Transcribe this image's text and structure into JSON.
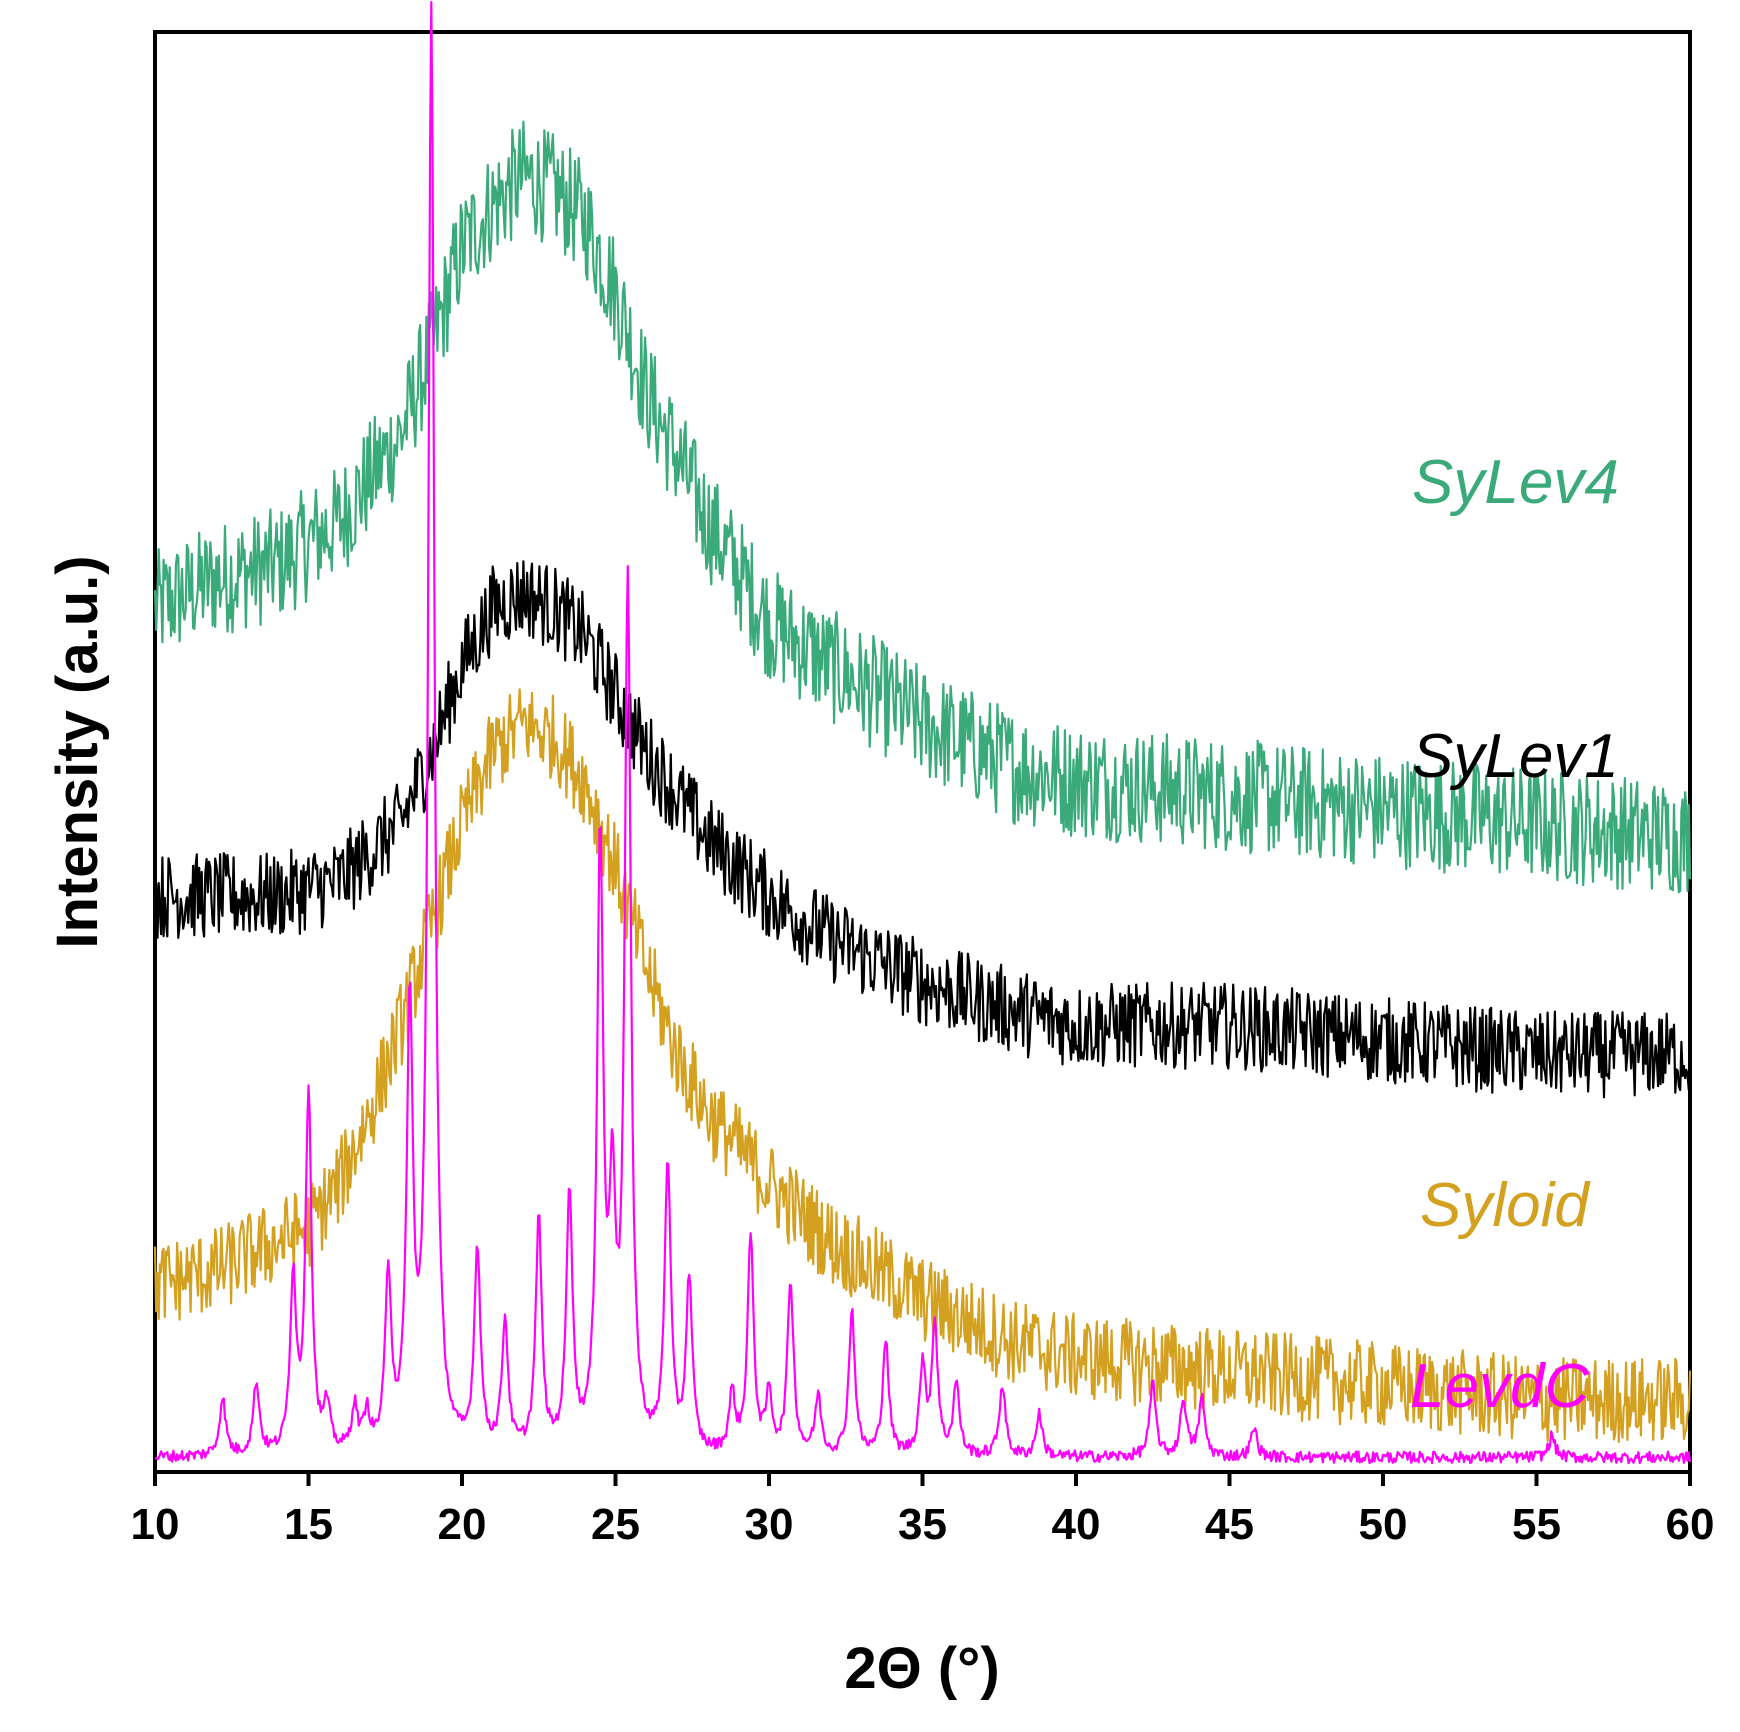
{
  "chart_data": {
    "type": "line",
    "xlabel": "2Θ (°)",
    "ylabel": "Intensity (a.u.)",
    "xlim": [
      10,
      60
    ],
    "x_ticks": [
      "10",
      "15",
      "20",
      "25",
      "30",
      "35",
      "40",
      "45",
      "50",
      "55",
      "60"
    ],
    "y_ticks_shown": false,
    "grid": false,
    "legend": "inline labels at right",
    "series": [
      {
        "name": "SyLev4",
        "color": "#3aaa7a",
        "style": "noisy amorphous halo",
        "points": [
          [
            10,
            60
          ],
          [
            12,
            62
          ],
          [
            14,
            63
          ],
          [
            16,
            66
          ],
          [
            18,
            72
          ],
          [
            19,
            78
          ],
          [
            20,
            85
          ],
          [
            21,
            88
          ],
          [
            22,
            90
          ],
          [
            23,
            89
          ],
          [
            24,
            87
          ],
          [
            25,
            82
          ],
          [
            26,
            75
          ],
          [
            28,
            66
          ],
          [
            30,
            59
          ],
          [
            32,
            56
          ],
          [
            35,
            52
          ],
          [
            38,
            49
          ],
          [
            40,
            48
          ],
          [
            45,
            47
          ],
          [
            50,
            46
          ],
          [
            55,
            45
          ],
          [
            60,
            44
          ]
        ],
        "noise": 4
      },
      {
        "name": "SyLev1",
        "color": "#000000",
        "style": "noisy amorphous halo",
        "points": [
          [
            10,
            40
          ],
          [
            12,
            40
          ],
          [
            14,
            40
          ],
          [
            16,
            41
          ],
          [
            18,
            45
          ],
          [
            19,
            50
          ],
          [
            20,
            56
          ],
          [
            21,
            60
          ],
          [
            22,
            61
          ],
          [
            23,
            60
          ],
          [
            24,
            58
          ],
          [
            25,
            54
          ],
          [
            26,
            50
          ],
          [
            28,
            44
          ],
          [
            30,
            40
          ],
          [
            32,
            37
          ],
          [
            35,
            34
          ],
          [
            38,
            32
          ],
          [
            40,
            31
          ],
          [
            45,
            31
          ],
          [
            50,
            30
          ],
          [
            55,
            29
          ],
          [
            60,
            29
          ]
        ],
        "noise": 3
      },
      {
        "name": "Syloid",
        "color": "#d4a020",
        "style": "noisy amorphous halo",
        "points": [
          [
            10,
            13
          ],
          [
            12,
            14
          ],
          [
            14,
            16
          ],
          [
            15,
            17
          ],
          [
            16,
            20
          ],
          [
            17,
            25
          ],
          [
            18,
            31
          ],
          [
            19,
            38
          ],
          [
            20,
            45
          ],
          [
            21,
            50
          ],
          [
            22,
            52
          ],
          [
            23,
            51
          ],
          [
            24,
            48
          ],
          [
            25,
            42
          ],
          [
            26,
            35
          ],
          [
            27,
            29
          ],
          [
            28,
            25
          ],
          [
            30,
            20
          ],
          [
            32,
            16
          ],
          [
            35,
            12
          ],
          [
            38,
            9
          ],
          [
            40,
            8
          ],
          [
            45,
            7
          ],
          [
            50,
            6
          ],
          [
            55,
            5
          ],
          [
            60,
            5
          ]
        ],
        "noise": 3
      },
      {
        "name": "LevdC",
        "color": "#ff00ff",
        "style": "sharp crystalline peaks",
        "baseline": 1,
        "peaks": [
          [
            12.2,
            4
          ],
          [
            13.3,
            5
          ],
          [
            14.5,
            12
          ],
          [
            15.0,
            25
          ],
          [
            15.6,
            3
          ],
          [
            16.5,
            3
          ],
          [
            16.9,
            2.5
          ],
          [
            17.6,
            12
          ],
          [
            18.3,
            30
          ],
          [
            19.0,
            100
          ],
          [
            20.5,
            14
          ],
          [
            21.4,
            9
          ],
          [
            22.5,
            16
          ],
          [
            23.5,
            18
          ],
          [
            24.5,
            42
          ],
          [
            24.9,
            16
          ],
          [
            25.4,
            60
          ],
          [
            26.7,
            20
          ],
          [
            27.4,
            12
          ],
          [
            28.8,
            4
          ],
          [
            29.4,
            15
          ],
          [
            30.0,
            4
          ],
          [
            30.7,
            12
          ],
          [
            31.6,
            4
          ],
          [
            32.7,
            10
          ],
          [
            33.8,
            8
          ],
          [
            35.0,
            6
          ],
          [
            35.4,
            9
          ],
          [
            36.1,
            5
          ],
          [
            37.6,
            5
          ],
          [
            38.8,
            3
          ],
          [
            42.5,
            5
          ],
          [
            43.5,
            4
          ],
          [
            44.1,
            4
          ],
          [
            45.8,
            2
          ],
          [
            55.5,
            1.5
          ]
        ]
      }
    ]
  }
}
